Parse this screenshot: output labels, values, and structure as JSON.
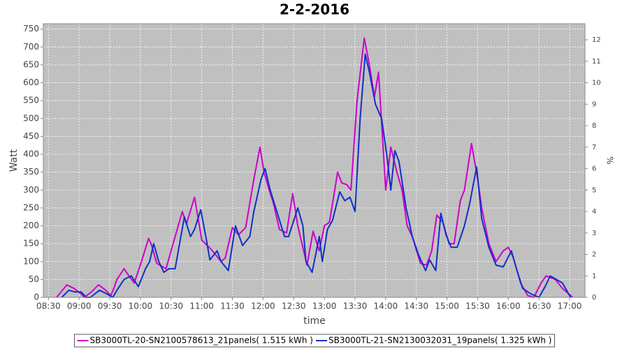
{
  "chart_data": {
    "type": "line",
    "title": "2-2-2016",
    "x_label": "time",
    "y_label": "Watt",
    "y2_label": "%",
    "xlim": [
      "08:25",
      "17:15"
    ],
    "xticks": [
      "08:30",
      "09:00",
      "09:30",
      "10:00",
      "10:30",
      "11:00",
      "11:30",
      "12:00",
      "12:30",
      "13:00",
      "13:30",
      "14:00",
      "14:30",
      "15:00",
      "15:30",
      "16:00",
      "16:30",
      "17:00"
    ],
    "ylim": [
      0,
      765
    ],
    "yticks": [
      0,
      50,
      100,
      150,
      200,
      250,
      300,
      350,
      400,
      450,
      500,
      550,
      600,
      650,
      700,
      750
    ],
    "y2lim": [
      0,
      12.75
    ],
    "y2ticks": [
      0,
      1,
      2,
      3,
      4,
      5,
      6,
      7,
      8,
      9,
      10,
      11,
      12
    ],
    "grid": true,
    "legend": "bottom",
    "series": [
      {
        "name": "SB3000TL-20-SN2100578613_21panels( 1.515 kWh )",
        "color": "#cc00cc",
        "x": [
          "08:38",
          "08:48",
          "08:55",
          "09:02",
          "09:05",
          "09:12",
          "09:19",
          "09:26",
          "09:31",
          "09:34",
          "09:37",
          "09:44",
          "09:50",
          "09:54",
          "10:01",
          "10:08",
          "10:11",
          "10:16",
          "10:25",
          "10:32",
          "10:41",
          "10:45",
          "10:53",
          "11:00",
          "11:09",
          "11:19",
          "11:23",
          "11:30",
          "11:36",
          "11:43",
          "11:51",
          "11:57",
          "12:01",
          "12:06",
          "12:10",
          "12:16",
          "12:23",
          "12:29",
          "12:34",
          "12:43",
          "12:49",
          "12:55",
          "13:00",
          "13:05",
          "13:13",
          "13:17",
          "13:22",
          "13:26",
          "13:32",
          "13:39",
          "13:44",
          "13:49",
          "13:53",
          "14:00",
          "14:05",
          "14:11",
          "14:16",
          "14:21",
          "14:26",
          "14:34",
          "14:40",
          "14:45",
          "14:50",
          "14:56",
          "15:02",
          "15:07",
          "15:13",
          "15:17",
          "15:24",
          "15:30",
          "15:34",
          "15:41",
          "15:48",
          "15:55",
          "16:00",
          "16:05",
          "16:12",
          "16:19",
          "16:25",
          "16:32",
          "16:37",
          "16:46",
          "16:53",
          "17:03"
        ],
        "values": [
          0,
          35,
          25,
          10,
          0,
          15,
          35,
          20,
          5,
          25,
          50,
          80,
          55,
          40,
          100,
          165,
          145,
          95,
          80,
          150,
          240,
          205,
          280,
          160,
          135,
          100,
          110,
          195,
          175,
          195,
          330,
          420,
          350,
          300,
          265,
          190,
          180,
          290,
          200,
          90,
          185,
          130,
          200,
          210,
          350,
          320,
          315,
          300,
          550,
          725,
          650,
          560,
          630,
          300,
          420,
          350,
          300,
          200,
          170,
          95,
          90,
          130,
          230,
          210,
          150,
          150,
          270,
          300,
          430,
          330,
          250,
          150,
          100,
          130,
          140,
          110,
          40,
          5,
          0,
          40,
          60,
          50,
          25,
          0
        ]
      },
      {
        "name": "SB3000TL-21-SN2130032031_19panels( 1.325 kWh )",
        "color": "#1030c8",
        "x": [
          "08:43",
          "08:50",
          "08:56",
          "09:02",
          "09:07",
          "09:11",
          "09:20",
          "09:27",
          "09:33",
          "09:37",
          "09:44",
          "09:51",
          "09:58",
          "10:05",
          "10:09",
          "10:13",
          "10:18",
          "10:23",
          "10:28",
          "10:34",
          "10:43",
          "10:49",
          "10:53",
          "10:59",
          "11:04",
          "11:08",
          "11:15",
          "11:19",
          "11:26",
          "11:33",
          "11:40",
          "11:47",
          "11:51",
          "11:58",
          "12:02",
          "12:07",
          "12:14",
          "12:21",
          "12:25",
          "12:34",
          "12:39",
          "12:42",
          "12:48",
          "12:55",
          "12:58",
          "13:03",
          "13:08",
          "13:15",
          "13:20",
          "13:25",
          "13:30",
          "13:35",
          "13:40",
          "13:44",
          "13:50",
          "13:56",
          "14:01",
          "14:05",
          "14:09",
          "14:13",
          "14:20",
          "14:26",
          "14:32",
          "14:39",
          "14:43",
          "14:49",
          "14:54",
          "14:59",
          "15:04",
          "15:10",
          "15:17",
          "15:22",
          "15:29",
          "15:34",
          "15:41",
          "15:48",
          "15:55",
          "16:03",
          "16:08",
          "16:14",
          "16:22",
          "16:30",
          "16:36",
          "16:41",
          "16:47",
          "16:53",
          "17:01"
        ],
        "values": [
          0,
          20,
          15,
          15,
          0,
          0,
          20,
          10,
          0,
          20,
          50,
          60,
          30,
          80,
          100,
          150,
          100,
          70,
          80,
          80,
          225,
          170,
          190,
          245,
          170,
          105,
          130,
          100,
          75,
          200,
          145,
          170,
          240,
          330,
          360,
          300,
          235,
          170,
          170,
          250,
          200,
          100,
          70,
          170,
          100,
          190,
          215,
          295,
          270,
          280,
          240,
          500,
          680,
          630,
          540,
          500,
          400,
          300,
          410,
          380,
          250,
          170,
          120,
          75,
          105,
          75,
          235,
          175,
          140,
          140,
          200,
          260,
          365,
          220,
          140,
          90,
          85,
          130,
          80,
          25,
          10,
          0,
          30,
          60,
          50,
          40,
          0
        ]
      }
    ]
  }
}
